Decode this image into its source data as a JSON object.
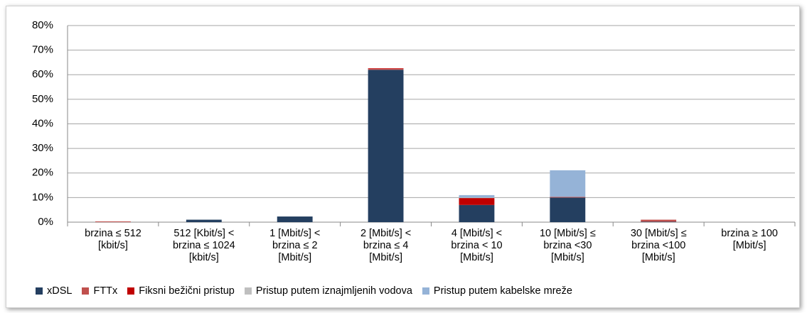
{
  "chart_data": {
    "type": "stacked_bar",
    "categories": [
      "brzina ≤ 512\n[kbit/s]",
      "512 [Kbit/s] <\nbrzina ≤ 1024\n[kbit/s]",
      "1 [Mbit/s] <\nbrzina ≤ 2\n[Mbit/s]",
      "2 [Mbit/s] <\nbrzina ≤ 4\n[Mbit/s]",
      "4 [Mbit/s] <\nbrzina < 10\n[Mbit/s]",
      "10 [Mbit/s] ≤\nbrzina <30\n[Mbit/s]",
      "30 [Mbit/s] ≤\nbrzina <100\n[Mbit/s]",
      "brzina ≥ 100\n[Mbit/s]"
    ],
    "series": [
      {
        "name": "xDSL",
        "color": "#243f60",
        "values": [
          0,
          1.0,
          2.3,
          62.0,
          7.0,
          10.0,
          0.2,
          0
        ]
      },
      {
        "name": "FTTx",
        "color": "#c0504d",
        "values": [
          0.3,
          0,
          0,
          0.3,
          0,
          0.3,
          0.8,
          0
        ]
      },
      {
        "name": "Fiksni bežični pristup",
        "color": "#c00000",
        "values": [
          0,
          0,
          0,
          0.3,
          2.8,
          0,
          0,
          0
        ]
      },
      {
        "name": "Pristup putem iznajmljenih vodova",
        "color": "#bfbfbf",
        "values": [
          0,
          0,
          0,
          0,
          0.2,
          0,
          0,
          0
        ]
      },
      {
        "name": "Pristup putem kabelske mreže",
        "color": "#95b3d7",
        "values": [
          0,
          0,
          0,
          0,
          1.0,
          10.8,
          0,
          0
        ]
      }
    ],
    "ylim": [
      0,
      80
    ],
    "yticks": [
      {
        "value": 0,
        "label": "0%"
      },
      {
        "value": 10,
        "label": "10%"
      },
      {
        "value": 20,
        "label": "20%"
      },
      {
        "value": 30,
        "label": "30%"
      },
      {
        "value": 40,
        "label": "40%"
      },
      {
        "value": 50,
        "label": "50%"
      },
      {
        "value": 60,
        "label": "60%"
      },
      {
        "value": 70,
        "label": "70%"
      },
      {
        "value": 80,
        "label": "80%"
      }
    ],
    "grid": true,
    "legend": "bottom"
  }
}
